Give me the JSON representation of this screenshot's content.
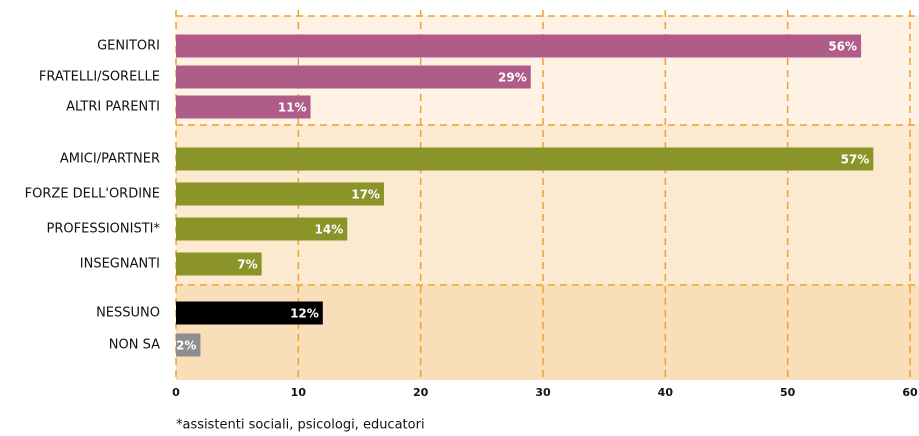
{
  "chart_data": {
    "type": "bar",
    "orientation": "horizontal",
    "categories": [
      "GENITORI",
      "FRATELLI/SORELLE",
      "ALTRI PARENTI",
      "AMICI/PARTNER",
      "FORZE DELL'ORDINE",
      "PROFESSIONISTI*",
      "INSEGNANTI",
      "NESSUNO",
      "NON SA"
    ],
    "values": [
      56,
      29,
      11,
      57,
      17,
      14,
      7,
      12,
      2
    ],
    "value_labels": [
      "56%",
      "29%",
      "11%",
      "57%",
      "17%",
      "14%",
      "7%",
      "12%",
      "2%"
    ],
    "colors": [
      "#b05c88",
      "#b05c88",
      "#b05c88",
      "#8a9429",
      "#8a9429",
      "#8a9429",
      "#8a9429",
      "#000000",
      "#8e8e8e"
    ],
    "xlim": [
      0,
      60
    ],
    "xticks": [
      0,
      10,
      20,
      30,
      40,
      50,
      60
    ],
    "grid": true,
    "footnote": "*assistenti sociali, psicologi, educatori"
  }
}
